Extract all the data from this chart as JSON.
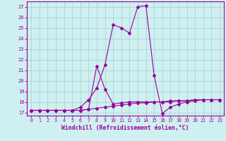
{
  "xlabel": "Windchill (Refroidissement éolien,°C)",
  "xlim": [
    -0.5,
    23.5
  ],
  "ylim": [
    16.7,
    27.5
  ],
  "yticks": [
    17,
    18,
    19,
    20,
    21,
    22,
    23,
    24,
    25,
    26,
    27
  ],
  "xticks": [
    0,
    1,
    2,
    3,
    4,
    5,
    6,
    7,
    8,
    9,
    10,
    11,
    12,
    13,
    14,
    15,
    16,
    17,
    18,
    19,
    20,
    21,
    22,
    23
  ],
  "bg_color": "#cff0f0",
  "line_color": "#990099",
  "grid_color": "#aacccc",
  "series": [
    [
      17.2,
      17.2,
      17.2,
      17.2,
      17.2,
      17.2,
      17.5,
      18.2,
      19.3,
      21.5,
      25.3,
      25.0,
      24.5,
      27.0,
      27.1,
      20.5,
      16.9,
      17.5,
      17.8,
      18.0,
      18.1,
      18.2,
      18.2,
      18.2
    ],
    [
      17.2,
      17.2,
      17.2,
      17.2,
      17.2,
      17.2,
      17.2,
      17.3,
      17.4,
      17.5,
      17.6,
      17.7,
      17.8,
      17.9,
      17.9,
      18.0,
      18.0,
      18.0,
      18.1,
      18.1,
      18.2,
      18.2,
      18.2,
      18.2
    ],
    [
      17.2,
      17.2,
      17.2,
      17.2,
      17.2,
      17.2,
      17.2,
      17.3,
      21.4,
      19.2,
      17.8,
      17.9,
      18.0,
      18.0,
      18.0,
      18.0,
      18.0,
      18.1,
      18.1,
      18.1,
      18.2,
      18.2,
      18.2,
      18.2
    ]
  ]
}
